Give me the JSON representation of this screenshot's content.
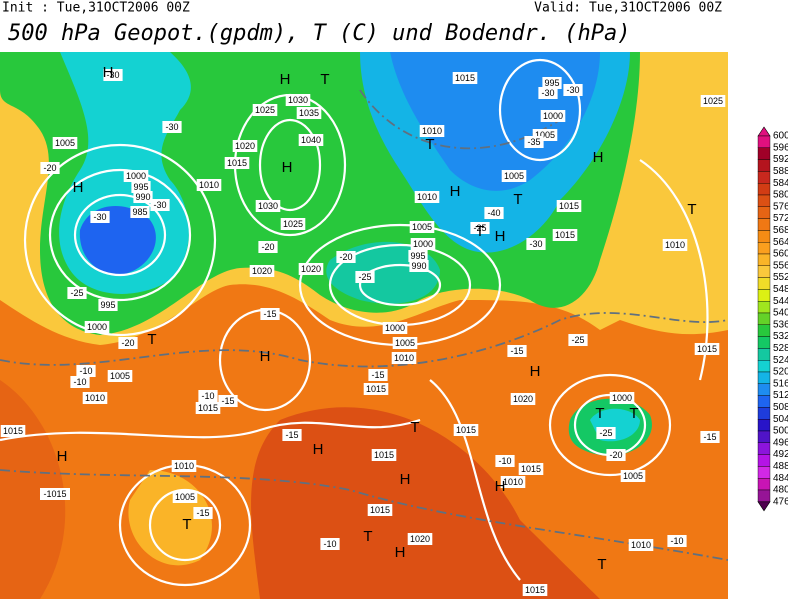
{
  "header": {
    "init": "Init : Tue,31OCT2006 00Z",
    "valid": "Valid: Tue,31OCT2006 00Z",
    "title": "500 hPa Geopot.(gpdm), T (C) und Bodendr. (hPa)"
  },
  "colorbar": {
    "levels": [
      600,
      596,
      592,
      588,
      584,
      580,
      576,
      572,
      568,
      564,
      560,
      556,
      552,
      548,
      544,
      540,
      536,
      532,
      528,
      524,
      520,
      516,
      512,
      508,
      504,
      500,
      496,
      492,
      488,
      484,
      480,
      476
    ],
    "colors": [
      "#e0107f",
      "#a00028",
      "#b4141e",
      "#c8281e",
      "#d23c14",
      "#dc5014",
      "#e66414",
      "#f07814",
      "#f58c14",
      "#fa9f1e",
      "#fab428",
      "#fac83c",
      "#f0dc28",
      "#dcf014",
      "#a0e61e",
      "#64d228",
      "#28c83c",
      "#14c864",
      "#14c8a0",
      "#14d2d2",
      "#14b4e6",
      "#1e8cf0",
      "#1e64f0",
      "#1e3cdc",
      "#2814c8",
      "#5014c8",
      "#8c14dc",
      "#b414e6",
      "#d228e6",
      "#c814b4",
      "#961496",
      "#500050"
    ]
  },
  "map_labels": [
    "1015",
    "995",
    "-30",
    "-30",
    "1000",
    "1005",
    "1010",
    "1025",
    "1030",
    "1035",
    "1040",
    "1020",
    "1015",
    "1010",
    "1005",
    "1000",
    "995",
    "990",
    "985",
    "-30",
    "-30",
    "1030",
    "1025",
    "1020",
    "1020",
    "-20",
    "1010",
    "-40",
    "1005",
    "1015",
    "1015",
    "-30",
    "1005",
    "1000",
    "995",
    "990",
    "1000",
    "1005",
    "1010",
    "-15",
    "-25",
    "1000",
    "-25",
    "-20",
    "1005",
    "1015",
    "1015",
    "-10",
    "1010",
    "1015",
    "1020",
    "-10",
    "1010",
    "-10",
    "1025",
    "1015",
    "1010",
    "-15",
    "1015",
    "1010",
    "-1015",
    "1005",
    "-15",
    "-10",
    "1015",
    "-15",
    "-15",
    "-15",
    "1010",
    "1005",
    "-10",
    "-10",
    "-20",
    "1000",
    "995",
    "-25",
    "-25",
    "-20",
    "-15",
    "1015",
    "1020",
    "1015",
    "-35",
    "-30",
    "-30",
    "-20",
    "-25",
    "1015"
  ],
  "centers": [
    "H",
    "H",
    "T",
    "H",
    "H",
    "T",
    "H",
    "T",
    "T",
    "H",
    "H",
    "T",
    "T",
    "H",
    "T",
    "T",
    "H",
    "T",
    "H",
    "H",
    "T",
    "H",
    "H",
    "T",
    "H",
    "T"
  ]
}
